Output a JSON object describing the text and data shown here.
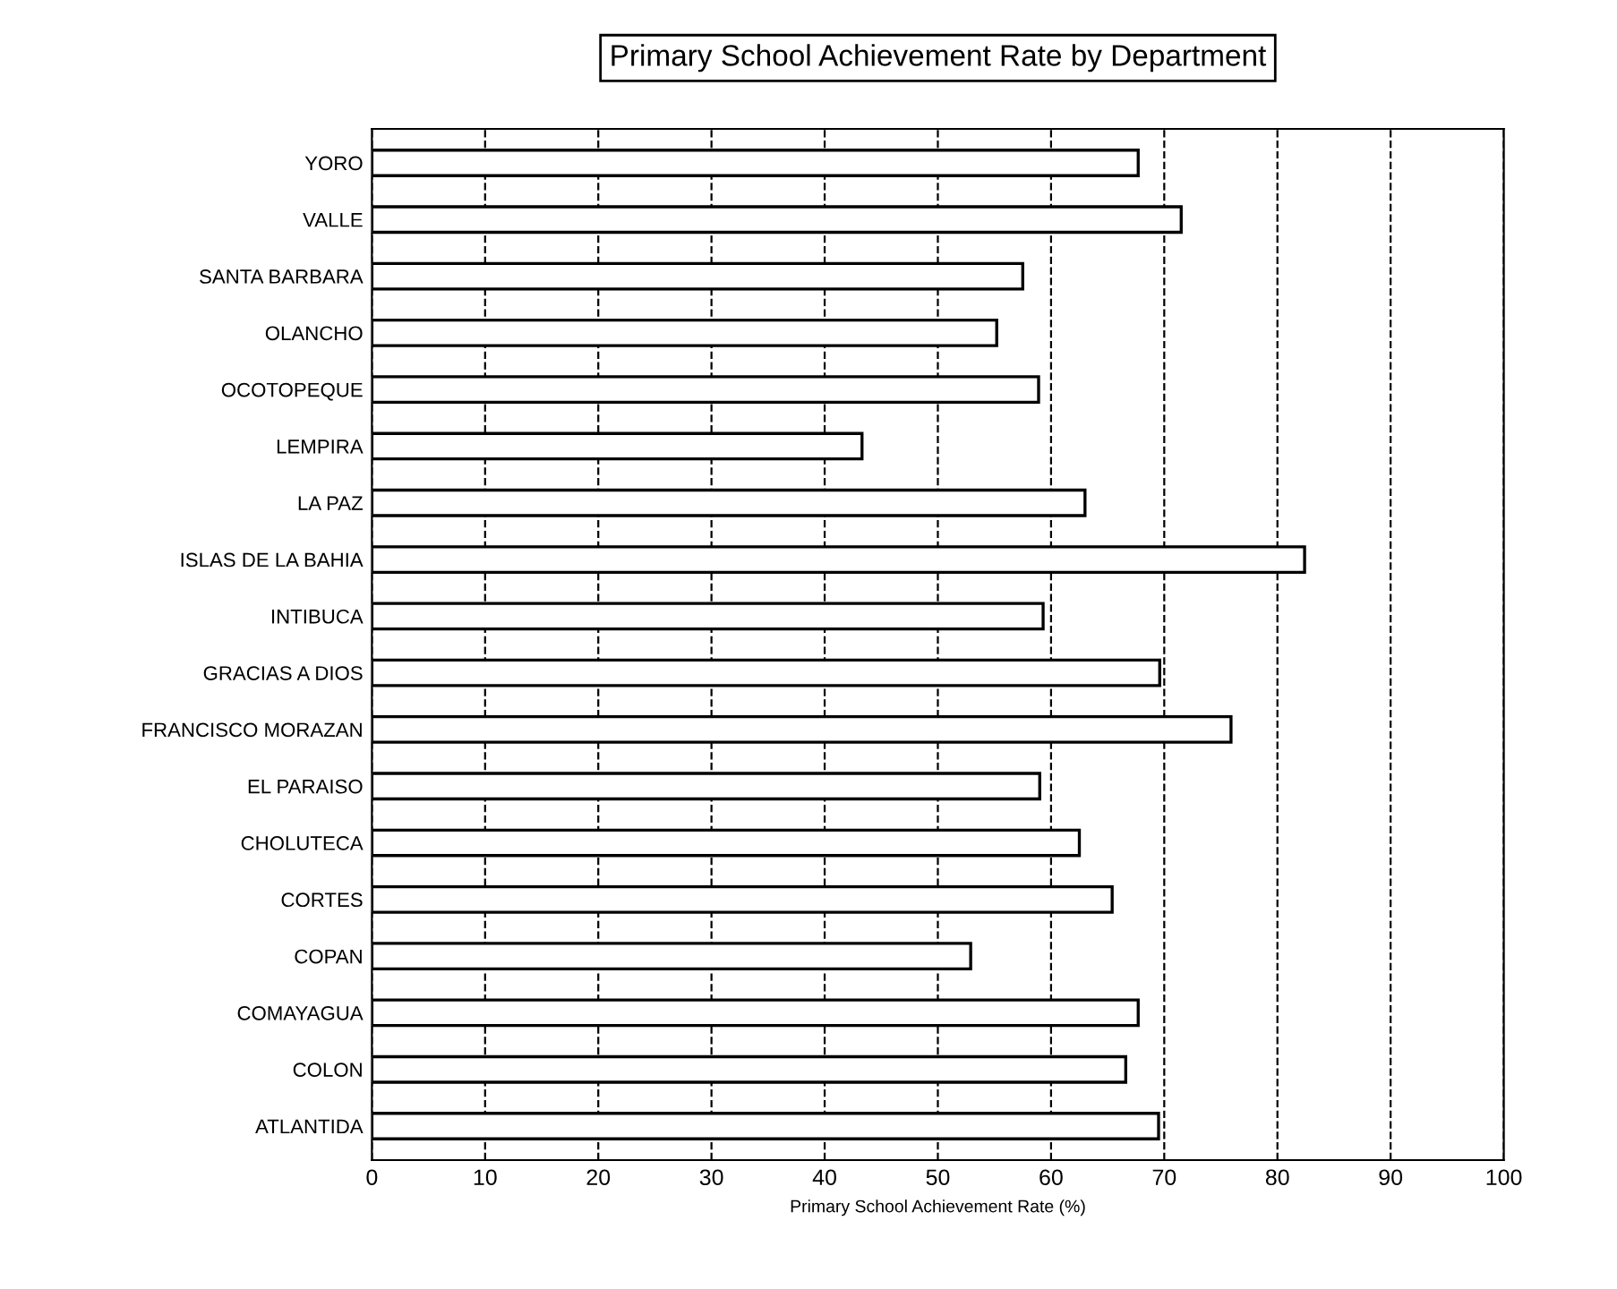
{
  "chart_data": {
    "type": "bar",
    "orientation": "horizontal",
    "title": "Primary School Achievement Rate by Department",
    "xlabel": "Primary School Achievement Rate (%)",
    "categories": [
      "YORO",
      "VALLE",
      "SANTA BARBARA",
      "OLANCHO",
      "OCOTOPEQUE",
      "LEMPIRA",
      "LA PAZ",
      "ISLAS DE LA BAHIA",
      "INTIBUCA",
      "GRACIAS A DIOS",
      "FRANCISCO MORAZAN",
      "EL PARAISO",
      "CHOLUTECA",
      "CORTES",
      "COPAN",
      "COMAYAGUA",
      "COLON",
      "ATLANTIDA"
    ],
    "values": [
      67.7,
      71.5,
      57.5,
      55.2,
      58.9,
      43.3,
      63.0,
      82.4,
      59.3,
      69.6,
      75.9,
      59.0,
      62.5,
      65.4,
      52.9,
      67.7,
      66.6,
      69.5
    ],
    "color": "#ffffff",
    "xlim": [
      0,
      100
    ],
    "xticks": [
      0,
      10,
      20,
      30,
      40,
      50,
      60,
      70,
      80,
      90,
      100
    ],
    "grid": "x",
    "line_style": "dashed"
  }
}
